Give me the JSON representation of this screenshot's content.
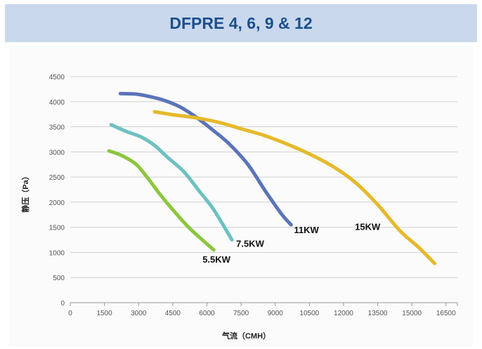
{
  "title": "DFPRE 4, 6, 9 & 12",
  "chart_data": {
    "type": "line",
    "xlabel": "气流（CMH）",
    "ylabel": "静压（Pa）",
    "xlim": [
      0,
      17000
    ],
    "ylim": [
      0,
      4500
    ],
    "x_ticks": [
      0,
      1500,
      3000,
      4500,
      6000,
      7500,
      9000,
      10500,
      12000,
      13500,
      15000,
      16500
    ],
    "x_tick_labels": [
      "0",
      "1500",
      "3000",
      "4500",
      "6000",
      "7500",
      "9000",
      "10500",
      "12000",
      "13500",
      "15000",
      "16500"
    ],
    "y_ticks": [
      0,
      500,
      1000,
      1500,
      2000,
      2500,
      3000,
      3500,
      4000,
      4500
    ],
    "y_tick_labels": [
      "0",
      "500",
      "1000",
      "1500",
      "2000",
      "2500",
      "3000",
      "3500",
      "4000",
      "4500"
    ],
    "grid": "horizontal",
    "series": [
      {
        "name": "5.5KW",
        "color": "#8cc63f",
        "x": [
          1700,
          2300,
          2900,
          3400,
          3900,
          4500,
          5200,
          5800,
          6300
        ],
        "y": [
          3020,
          2920,
          2750,
          2480,
          2180,
          1850,
          1500,
          1250,
          1050
        ]
      },
      {
        "name": "7.5KW",
        "color": "#6ec1c0",
        "x": [
          1800,
          2500,
          3100,
          3700,
          4300,
          5000,
          5700,
          6300,
          7100
        ],
        "y": [
          3540,
          3400,
          3300,
          3130,
          2880,
          2600,
          2200,
          1850,
          1250
        ]
      },
      {
        "name": "11KW",
        "color": "#5b74b8",
        "x": [
          2200,
          2900,
          3500,
          4100,
          4800,
          5500,
          6300,
          7000,
          7800,
          8600,
          9300,
          9700
        ],
        "y": [
          4160,
          4150,
          4100,
          4030,
          3900,
          3700,
          3420,
          3150,
          2750,
          2200,
          1750,
          1550
        ]
      },
      {
        "name": "15KW",
        "color": "#e6b92c",
        "x": [
          3700,
          4500,
          5500,
          6500,
          7500,
          8500,
          9500,
          10500,
          11500,
          12500,
          13500,
          14500,
          15300,
          16000
        ],
        "y": [
          3800,
          3740,
          3680,
          3590,
          3460,
          3330,
          3160,
          2960,
          2720,
          2400,
          1950,
          1420,
          1100,
          780
        ]
      }
    ]
  }
}
